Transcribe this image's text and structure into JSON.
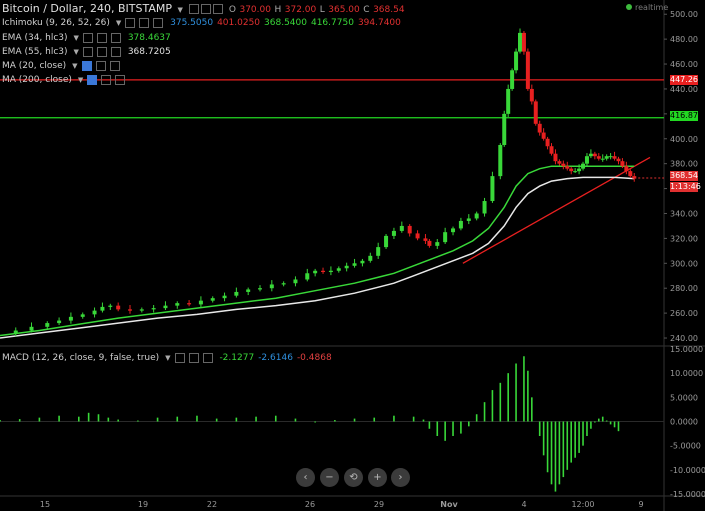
{
  "header": {
    "title": "Bitcoin / Dollar, 240, BITSTAMP",
    "ohlc": {
      "o_label": "O",
      "o": "370.00",
      "h_label": "H",
      "h": "372.00",
      "l_label": "L",
      "l": "365.00",
      "c_label": "C",
      "c": "368.54"
    },
    "realtime": "realtime"
  },
  "indicators": [
    {
      "label": "Ichimoku (9, 26, 52, 26)",
      "values": [
        "375.5050",
        "401.0250",
        "368.5400",
        "416.7750",
        "394.7400"
      ],
      "colors": [
        "#2f8fdd",
        "#e03030",
        "#39d839",
        "#39d839",
        "#e03030"
      ]
    },
    {
      "label": "EMA (34, hlc3)",
      "values": [
        "378.4637"
      ],
      "colors": [
        "#39d839"
      ]
    },
    {
      "label": "EMA (55, hlc3)",
      "values": [
        "368.7205"
      ],
      "colors": [
        "#e0e0e0"
      ]
    },
    {
      "label": "MA (20, close)",
      "values": [],
      "colors": []
    },
    {
      "label": "MA (200, close)",
      "values": [],
      "colors": []
    }
  ],
  "macd": {
    "label": "MACD (12, 26, close, 9, false, true)",
    "values": [
      "-2.1277",
      "-2.6146",
      "-0.4868"
    ],
    "colors": [
      "#39d839",
      "#2f8fdd",
      "#e04040"
    ]
  },
  "price_labels": {
    "resistance": "447.26",
    "support": "416.87",
    "last": "368.54",
    "countdown": "1:13:46"
  },
  "nav_icons": [
    "chevron-left-icon",
    "zoom-out-icon",
    "reset-icon",
    "zoom-in-icon",
    "chevron-right-icon"
  ],
  "nav_glyphs": [
    "‹",
    "−",
    "⟲",
    "+",
    "›"
  ],
  "chart_data": {
    "type": "candlestick",
    "y_ticks": [
      500,
      480,
      460,
      440,
      420,
      400,
      380,
      360,
      340,
      320,
      300,
      280,
      260,
      240
    ],
    "ylim": [
      236,
      505
    ],
    "x_ticks": [
      "15",
      "19",
      "22",
      "26",
      "29",
      "Nov",
      "4",
      "12:00",
      "9"
    ],
    "horizontal_lines": [
      {
        "value": 447.26,
        "color": "#e82020"
      },
      {
        "value": 416.87,
        "color": "#22d822"
      }
    ],
    "close_path": [
      [
        0,
        244
      ],
      [
        8,
        246
      ],
      [
        16,
        249
      ],
      [
        24,
        252
      ],
      [
        30,
        254
      ],
      [
        36,
        257
      ],
      [
        42,
        259
      ],
      [
        48,
        262
      ],
      [
        52,
        265
      ],
      [
        56,
        266
      ],
      [
        60,
        263
      ],
      [
        66,
        262
      ],
      [
        72,
        263
      ],
      [
        78,
        264
      ],
      [
        84,
        266
      ],
      [
        90,
        268
      ],
      [
        96,
        267
      ],
      [
        102,
        270
      ],
      [
        108,
        272
      ],
      [
        114,
        274
      ],
      [
        120,
        277
      ],
      [
        126,
        279
      ],
      [
        132,
        280
      ],
      [
        138,
        283
      ],
      [
        144,
        284
      ],
      [
        150,
        287
      ],
      [
        156,
        292
      ],
      [
        160,
        294
      ],
      [
        164,
        293
      ],
      [
        168,
        294
      ],
      [
        172,
        296
      ],
      [
        176,
        298
      ],
      [
        180,
        300
      ],
      [
        184,
        302
      ],
      [
        188,
        306
      ],
      [
        192,
        313
      ],
      [
        196,
        322
      ],
      [
        200,
        326
      ],
      [
        204,
        330
      ],
      [
        208,
        324
      ],
      [
        212,
        320
      ],
      [
        216,
        318
      ],
      [
        218,
        314
      ],
      [
        222,
        317
      ],
      [
        226,
        325
      ],
      [
        230,
        328
      ],
      [
        234,
        334
      ],
      [
        238,
        336
      ],
      [
        242,
        340
      ],
      [
        246,
        350
      ],
      [
        250,
        370
      ],
      [
        254,
        395
      ],
      [
        256,
        420
      ],
      [
        258,
        440
      ],
      [
        260,
        455
      ],
      [
        262,
        470
      ],
      [
        264,
        485
      ],
      [
        266,
        470
      ],
      [
        268,
        440
      ],
      [
        270,
        430
      ],
      [
        272,
        412
      ],
      [
        274,
        405
      ],
      [
        276,
        400
      ],
      [
        278,
        394
      ],
      [
        280,
        388
      ],
      [
        282,
        382
      ],
      [
        284,
        380
      ],
      [
        286,
        378
      ],
      [
        288,
        376
      ],
      [
        290,
        374
      ],
      [
        292,
        374
      ],
      [
        294,
        376
      ],
      [
        296,
        380
      ],
      [
        298,
        386
      ],
      [
        300,
        388
      ],
      [
        302,
        386
      ],
      [
        304,
        384
      ],
      [
        306,
        384
      ],
      [
        308,
        386
      ],
      [
        310,
        386
      ],
      [
        312,
        384
      ],
      [
        314,
        382
      ],
      [
        316,
        378
      ],
      [
        318,
        374
      ],
      [
        320,
        370
      ],
      [
        322,
        368
      ]
    ],
    "ema34": [
      [
        0,
        242
      ],
      [
        20,
        246
      ],
      [
        40,
        251
      ],
      [
        60,
        256
      ],
      [
        80,
        260
      ],
      [
        100,
        264
      ],
      [
        120,
        268
      ],
      [
        140,
        272
      ],
      [
        160,
        278
      ],
      [
        180,
        284
      ],
      [
        200,
        292
      ],
      [
        210,
        298
      ],
      [
        220,
        304
      ],
      [
        230,
        310
      ],
      [
        240,
        318
      ],
      [
        248,
        328
      ],
      [
        256,
        345
      ],
      [
        262,
        362
      ],
      [
        268,
        372
      ],
      [
        274,
        376
      ],
      [
        280,
        378
      ],
      [
        288,
        378
      ],
      [
        296,
        378
      ],
      [
        304,
        378
      ],
      [
        312,
        378
      ],
      [
        322,
        378
      ]
    ],
    "ema55": [
      [
        0,
        240
      ],
      [
        20,
        244
      ],
      [
        40,
        248
      ],
      [
        60,
        252
      ],
      [
        80,
        256
      ],
      [
        100,
        259
      ],
      [
        120,
        263
      ],
      [
        140,
        266
      ],
      [
        160,
        270
      ],
      [
        180,
        276
      ],
      [
        200,
        284
      ],
      [
        210,
        290
      ],
      [
        220,
        296
      ],
      [
        230,
        302
      ],
      [
        240,
        308
      ],
      [
        248,
        316
      ],
      [
        256,
        330
      ],
      [
        262,
        345
      ],
      [
        268,
        356
      ],
      [
        274,
        362
      ],
      [
        280,
        366
      ],
      [
        288,
        368
      ],
      [
        296,
        369
      ],
      [
        304,
        369
      ],
      [
        312,
        369
      ],
      [
        322,
        368
      ]
    ],
    "trend_line": [
      [
        235,
        300
      ],
      [
        330,
        385
      ]
    ],
    "macd_hist": [
      [
        0,
        0.3
      ],
      [
        10,
        0.5
      ],
      [
        20,
        0.8
      ],
      [
        30,
        1.2
      ],
      [
        40,
        1.0
      ],
      [
        45,
        1.8
      ],
      [
        50,
        1.5
      ],
      [
        55,
        0.8
      ],
      [
        60,
        0.4
      ],
      [
        70,
        0.2
      ],
      [
        80,
        0.8
      ],
      [
        90,
        1.0
      ],
      [
        100,
        1.2
      ],
      [
        110,
        0.6
      ],
      [
        120,
        0.8
      ],
      [
        130,
        1.0
      ],
      [
        140,
        1.2
      ],
      [
        150,
        0.6
      ],
      [
        160,
        -0.2
      ],
      [
        170,
        0.3
      ],
      [
        180,
        0.6
      ],
      [
        190,
        0.8
      ],
      [
        200,
        1.2
      ],
      [
        210,
        1.0
      ],
      [
        215,
        0.4
      ],
      [
        218,
        -1.5
      ],
      [
        222,
        -3.0
      ],
      [
        226,
        -4.0
      ],
      [
        230,
        -3.0
      ],
      [
        234,
        -2.5
      ],
      [
        238,
        -1.0
      ],
      [
        242,
        1.5
      ],
      [
        246,
        4.0
      ],
      [
        250,
        6.5
      ],
      [
        254,
        8.0
      ],
      [
        258,
        10.0
      ],
      [
        262,
        12.0
      ],
      [
        266,
        13.5
      ],
      [
        268,
        10.5
      ],
      [
        270,
        5.0
      ],
      [
        272,
        0.0
      ],
      [
        274,
        -3.0
      ],
      [
        276,
        -7.0
      ],
      [
        278,
        -10.5
      ],
      [
        280,
        -13.0
      ],
      [
        282,
        -14.5
      ],
      [
        284,
        -13.0
      ],
      [
        286,
        -11.5
      ],
      [
        288,
        -10.0
      ],
      [
        290,
        -8.5
      ],
      [
        292,
        -7.5
      ],
      [
        294,
        -6.5
      ],
      [
        296,
        -5.0
      ],
      [
        298,
        -3.0
      ],
      [
        300,
        -1.5
      ],
      [
        302,
        -0.2
      ],
      [
        304,
        0.6
      ],
      [
        306,
        1.0
      ],
      [
        308,
        0.2
      ],
      [
        310,
        -0.6
      ],
      [
        312,
        -1.2
      ],
      [
        314,
        -2.0
      ]
    ],
    "macd_ylim": [
      -15,
      15
    ],
    "macd_ticks": [
      "15.0000",
      "10.0000",
      "5.0000",
      "0.0000",
      "-5.0000",
      "-10.0000",
      "-15.0000"
    ]
  }
}
